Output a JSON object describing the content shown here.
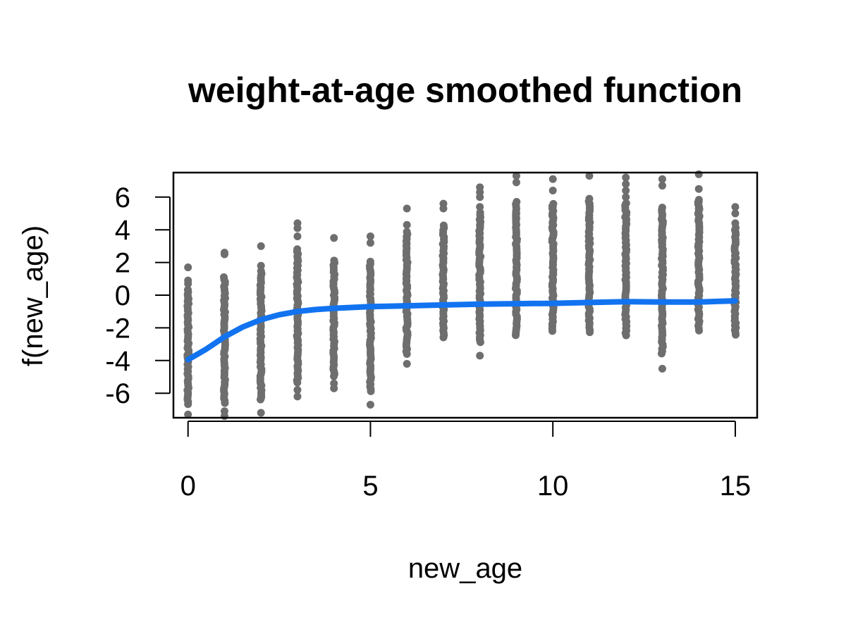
{
  "chart_data": {
    "type": "scatter",
    "title": "weight-at-age smoothed function",
    "xlabel": "new_age",
    "ylabel": "f(new_age)",
    "xlim": [
      -0.4,
      15.6
    ],
    "ylim": [
      -7.5,
      7.5
    ],
    "x_ticks": [
      0,
      5,
      10,
      15
    ],
    "x_tick_labels": [
      "0",
      "5",
      "10",
      "15"
    ],
    "y_ticks": [
      -6,
      -4,
      -2,
      0,
      2,
      4,
      6
    ],
    "y_tick_labels": [
      "-6",
      "-4",
      "-2",
      "0",
      "2",
      "4",
      "6"
    ],
    "grid": false,
    "legend": "none",
    "colors": {
      "points": "#6e6e6e",
      "smooth": "#1273f0"
    },
    "series": [
      {
        "kind": "points",
        "columns": [
          {
            "x": 0,
            "min": -7.4,
            "max": 1.7,
            "outliers": [
              1.7,
              0.9,
              0.7,
              -0.2,
              -7.3
            ]
          },
          {
            "x": 1,
            "min": -7.4,
            "max": 2.6,
            "outliers": [
              2.6,
              2.5,
              -7.1,
              -7.4
            ]
          },
          {
            "x": 2,
            "min": -7.2,
            "max": 3.0,
            "outliers": [
              3.0,
              1.8,
              -6.3,
              -7.2
            ]
          },
          {
            "x": 3,
            "min": -6.2,
            "max": 4.4,
            "outliers": [
              4.4,
              4.1,
              3.6,
              -5.8,
              -6.2
            ]
          },
          {
            "x": 4,
            "min": -5.7,
            "max": 3.5,
            "outliers": [
              3.5,
              -5.4,
              -5.7
            ]
          },
          {
            "x": 5,
            "min": -6.7,
            "max": 3.6,
            "outliers": [
              3.6,
              3.2,
              -4.6,
              -6.7
            ]
          },
          {
            "x": 6,
            "min": -4.2,
            "max": 5.3,
            "outliers": [
              5.3,
              4.3,
              -3.6,
              -4.2
            ]
          },
          {
            "x": 7,
            "min": -3.3,
            "max": 5.6,
            "outliers": [
              5.6,
              5.3
            ]
          },
          {
            "x": 8,
            "min": -3.7,
            "max": 6.6,
            "outliers": [
              6.6,
              6.3,
              6.0,
              5.4,
              4.6,
              4.3,
              -3.7
            ]
          },
          {
            "x": 9,
            "min": -3.3,
            "max": 7.3,
            "outliers": [
              7.3,
              6.9,
              5.0,
              4.7,
              4.3
            ]
          },
          {
            "x": 10,
            "min": -3.0,
            "max": 7.1,
            "outliers": [
              7.1,
              6.4,
              5.4,
              4.9,
              4.3
            ]
          },
          {
            "x": 11,
            "min": -3.1,
            "max": 7.3,
            "outliers": [
              7.3,
              5.9,
              5.6,
              4.7
            ]
          },
          {
            "x": 12,
            "min": -3.3,
            "max": 7.2,
            "outliers": [
              7.2,
              6.8,
              6.4,
              6.0,
              5.6
            ]
          },
          {
            "x": 13,
            "min": -4.5,
            "max": 7.1,
            "outliers": [
              7.1,
              6.7,
              4.5,
              4.2,
              3.3,
              2.5,
              -4.5
            ]
          },
          {
            "x": 14,
            "min": -3.0,
            "max": 7.4,
            "outliers": [
              7.4,
              6.5,
              5.7,
              5.3,
              3.4,
              3.0
            ]
          },
          {
            "x": 15,
            "min": -3.1,
            "max": 5.4,
            "outliers": [
              5.4,
              5.0,
              4.4
            ]
          }
        ]
      },
      {
        "kind": "smooth",
        "x": [
          0,
          0.5,
          1,
          1.5,
          2,
          2.5,
          3,
          3.5,
          4,
          5,
          6,
          7,
          8,
          9,
          10,
          11,
          12,
          13,
          14,
          15
        ],
        "y": [
          -3.95,
          -3.3,
          -2.55,
          -1.95,
          -1.5,
          -1.2,
          -1.0,
          -0.88,
          -0.8,
          -0.7,
          -0.65,
          -0.6,
          -0.55,
          -0.52,
          -0.5,
          -0.45,
          -0.4,
          -0.42,
          -0.42,
          -0.35
        ]
      }
    ]
  }
}
